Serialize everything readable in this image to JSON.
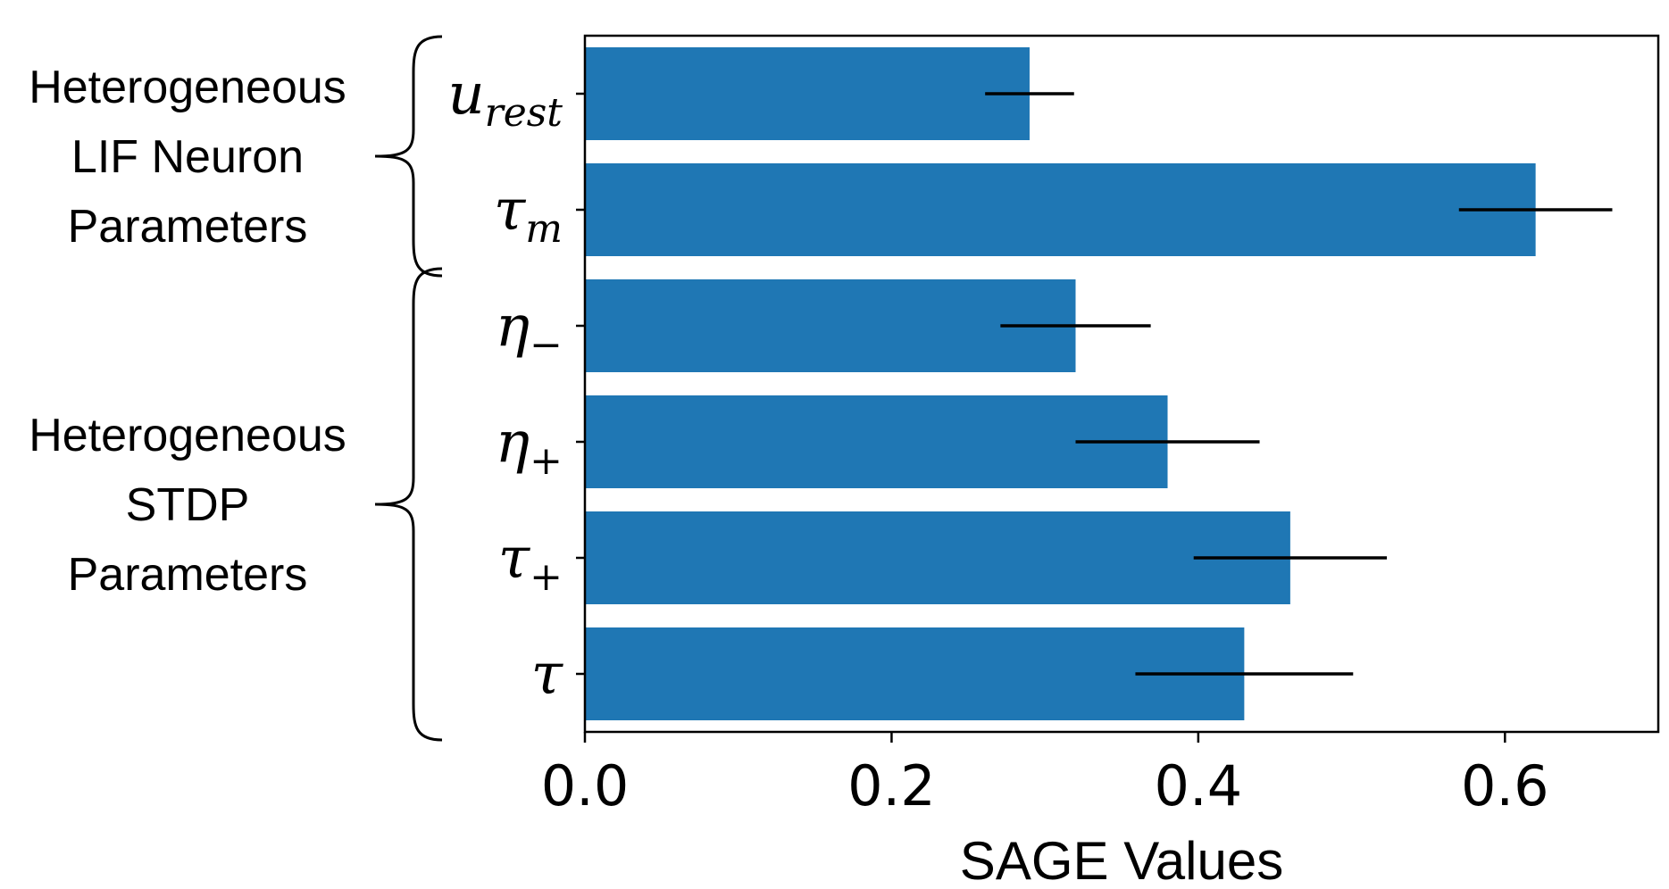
{
  "chart_data": {
    "type": "bar",
    "orientation": "horizontal",
    "categories": [
      {
        "base": "u",
        "sub": "rest"
      },
      {
        "base": "τ",
        "sub": "m"
      },
      {
        "base": "η",
        "sub": "−"
      },
      {
        "base": "η",
        "sub": "+"
      },
      {
        "base": "τ",
        "sub": "+"
      },
      {
        "base": "τ",
        "sub": ""
      }
    ],
    "values": [
      0.29,
      0.62,
      0.32,
      0.38,
      0.46,
      0.43
    ],
    "errors": [
      0.029,
      0.05,
      0.049,
      0.06,
      0.063,
      0.071
    ],
    "xlabel": "SAGE Values",
    "title": "",
    "ylabel": "",
    "xlim": [
      0,
      0.7
    ],
    "xticks": [
      "0.0",
      "0.2",
      "0.4",
      "0.6"
    ],
    "xtick_values": [
      0,
      0.2,
      0.4,
      0.6
    ],
    "groups": [
      {
        "lines": [
          "Heterogeneous",
          "LIF Neuron",
          "Parameters"
        ],
        "first": 0,
        "last": 1
      },
      {
        "lines": [
          "Heterogeneous",
          "STDP",
          "Parameters"
        ],
        "first": 2,
        "last": 5
      }
    ],
    "bar_color": "#1f77b4",
    "error_color": "#000000",
    "grid": false,
    "legend": "none"
  }
}
